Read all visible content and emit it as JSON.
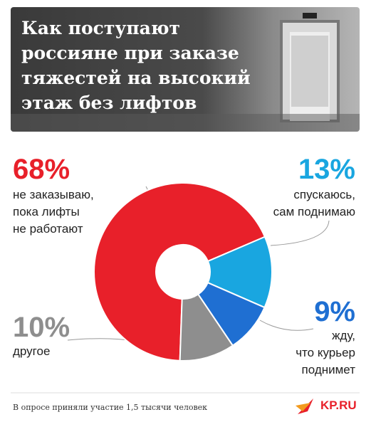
{
  "header": {
    "title": "Как поступают россияне при заказе тяжестей на высокий этаж без лифтов"
  },
  "chart_data": {
    "type": "donut",
    "categories": [
      "не заказываю,\nпока лифты\nне работают",
      "спускаюсь,\nсам поднимаю",
      "жду,\nчто курьер\nподнимет",
      "другое"
    ],
    "values": [
      68,
      13,
      9,
      10
    ],
    "value_labels": [
      "68%",
      "13%",
      "9%",
      "10%"
    ],
    "colors": [
      "#e8202a",
      "#19a6e0",
      "#1f6fd2",
      "#8e8e8e"
    ]
  },
  "footer": {
    "note": "В опросе приняли участие 1,5 тысячи человек",
    "logo": "KP.RU"
  }
}
